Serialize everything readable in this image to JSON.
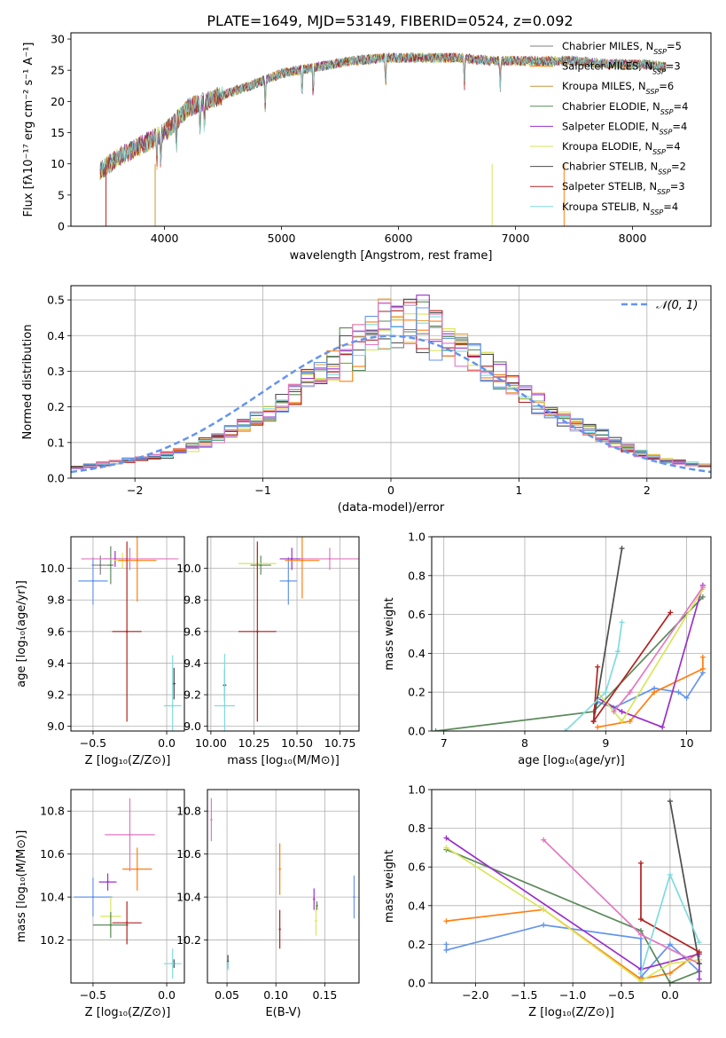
{
  "figure_title": "PLATE=1649, MJD=53149, FIBERID=0524, z=0.092",
  "model_colors": [
    "#7f7f7f",
    "#ff7f0e",
    "#e6a23c",
    "#5b8a5b",
    "#9b30c8",
    "#d9e65a",
    "#4d4d4d",
    "#b22222",
    "#7fdbdf"
  ],
  "chart_data": [
    {
      "id": "spectrum",
      "type": "line",
      "title": "PLATE=1649, MJD=53149, FIBERID=0524, z=0.092",
      "xlabel": "wavelength [Angstrom, rest frame]",
      "ylabel": "Flux [fλ10⁻¹⁷ erg cm⁻² s⁻¹ A⁻¹]",
      "xlim": [
        3200,
        8670
      ],
      "ylim": [
        0,
        31
      ],
      "xticks": [
        "4000",
        "5000",
        "6000",
        "7000",
        "8000"
      ],
      "yticks": [
        "0",
        "5",
        "10",
        "15",
        "20",
        "25",
        "30"
      ],
      "legend_position": "top-right",
      "series": [
        {
          "name": "Chabrier MILES, N_SSP=5",
          "color": "#7f7f7f"
        },
        {
          "name": "Salpeter MILES, N_SSP=3",
          "color": "#ff7f0e"
        },
        {
          "name": "Kroupa MILES, N_SSP=6",
          "color": "#c8963c"
        },
        {
          "name": "Chabrier ELODIE, N_SSP=4",
          "color": "#5b8a5b"
        },
        {
          "name": "Salpeter ELODIE, N_SSP=4",
          "color": "#9b30c8"
        },
        {
          "name": "Kroupa ELODIE, N_SSP=4",
          "color": "#d9e65a"
        },
        {
          "name": "Chabrier STELIB, N_SSP=2",
          "color": "#4d4d4d"
        },
        {
          "name": "Salpeter STELIB, N_SSP=3",
          "color": "#b22222"
        },
        {
          "name": "Kroupa STELIB, N_SSP=4",
          "color": "#7fdbdf"
        }
      ],
      "continuum": {
        "x": [
          3450,
          3600,
          3800,
          4000,
          4200,
          4500,
          4800,
          5000,
          5300,
          5600,
          5900,
          6200,
          6500,
          6800,
          7000,
          7200,
          7500,
          7800,
          8100,
          8300
        ],
        "y": [
          9,
          11,
          13,
          15,
          19,
          21,
          23,
          24.5,
          25.5,
          26.5,
          27,
          27,
          27,
          26.5,
          26.5,
          26.5,
          26.5,
          26,
          26,
          25.5
        ]
      }
    },
    {
      "id": "residuals",
      "type": "histogram",
      "xlabel": "(data-model)/error",
      "ylabel": "Normed distribution",
      "xlim": [
        -2.5,
        2.5
      ],
      "ylim": [
        0,
        0.54
      ],
      "xticks": [
        "−2",
        "−1",
        "0",
        "1",
        "2"
      ],
      "yticks": [
        "0.0",
        "0.1",
        "0.2",
        "0.3",
        "0.4",
        "0.5"
      ],
      "legend": "𝒩(0, 1)",
      "legend_position": "top-right",
      "bin_width": 0.1,
      "bin_start": -2.5,
      "reference_heights": [
        0.03,
        0.035,
        0.04,
        0.045,
        0.05,
        0.055,
        0.06,
        0.065,
        0.075,
        0.085,
        0.1,
        0.11,
        0.13,
        0.145,
        0.165,
        0.185,
        0.21,
        0.235,
        0.27,
        0.29,
        0.32,
        0.34,
        0.37,
        0.39,
        0.41,
        0.43,
        0.43,
        0.42,
        0.4,
        0.38,
        0.365,
        0.34,
        0.31,
        0.29,
        0.265,
        0.24,
        0.21,
        0.19,
        0.17,
        0.15,
        0.135,
        0.12,
        0.1,
        0.085,
        0.07,
        0.06,
        0.05,
        0.045,
        0.04,
        0.035
      ]
    },
    {
      "id": "age-vs-Z",
      "type": "errorbar",
      "xlabel": "Z [log₁₀(Z/Z⊙)]",
      "ylabel": "age  [log₁₀(age/yr)]",
      "xlim": [
        -0.65,
        0.12
      ],
      "ylim": [
        8.97,
        10.2
      ],
      "xticks": [
        "−0.5",
        "0.0"
      ],
      "yticks": [
        "9.0",
        "9.2",
        "9.4",
        "9.6",
        "9.8",
        "10.0"
      ],
      "points": [
        {
          "x": -0.5,
          "y": 9.92,
          "xerr": 0.1,
          "yerr": 0.15,
          "color": "#6495ed"
        },
        {
          "x": -0.45,
          "y": 10.02,
          "xerr": 0.06,
          "yerr": 0.06,
          "color": "#7f7f7f"
        },
        {
          "x": -0.38,
          "y": 10.02,
          "xerr": 0.02,
          "yerr": 0.12,
          "color": "#5b8a5b"
        },
        {
          "x": -0.35,
          "y": 10.06,
          "xerr": 0.08,
          "yerr": 0.05,
          "color": "#9b30c8"
        },
        {
          "x": -0.3,
          "y": 10.05,
          "xerr": 0.06,
          "yerr": 0.05,
          "color": "#d9e65a"
        },
        {
          "x": -0.2,
          "y": 10.05,
          "xerr": 0.13,
          "yerr": 0.26,
          "color": "#ff7f0e"
        },
        {
          "x": -0.25,
          "y": 10.06,
          "xerr": 0.33,
          "yerr": 0.07,
          "color": "#e377c2"
        },
        {
          "x": -0.27,
          "y": 9.6,
          "xerr": 0.1,
          "yerr": 0.57,
          "color": "#b22222"
        },
        {
          "x": 0.05,
          "y": 9.27,
          "xerr": 0.01,
          "yerr": 0.1,
          "color": "#4d4d4d"
        },
        {
          "x": 0.04,
          "y": 9.13,
          "xerr": 0.06,
          "yerr": 0.32,
          "color": "#7fdbdf"
        }
      ]
    },
    {
      "id": "age-vs-mass",
      "type": "errorbar",
      "xlabel": "mass [log₁₀(M/M⊙)]",
      "ylabel": "",
      "xlim": [
        9.98,
        10.86
      ],
      "ylim": [
        8.97,
        10.2
      ],
      "xticks": [
        "10.00",
        "10.25",
        "10.50",
        "10.75"
      ],
      "yticks": [
        "9.0",
        "9.2",
        "9.4",
        "9.6",
        "9.8",
        "10.0"
      ],
      "points": [
        {
          "x": 10.45,
          "y": 9.92,
          "xerr": 0.05,
          "yerr": 0.15,
          "color": "#6495ed"
        },
        {
          "x": 10.29,
          "y": 10.02,
          "xerr": 0.06,
          "yerr": 0.06,
          "color": "#5b8a5b"
        },
        {
          "x": 10.27,
          "y": 10.03,
          "xerr": 0.11,
          "yerr": 0.1,
          "color": "#d9e65a"
        },
        {
          "x": 10.47,
          "y": 10.06,
          "xerr": 0.07,
          "yerr": 0.07,
          "color": "#9b30c8"
        },
        {
          "x": 10.53,
          "y": 10.05,
          "xerr": 0.1,
          "yerr": 0.24,
          "color": "#ff7f0e"
        },
        {
          "x": 10.69,
          "y": 10.06,
          "xerr": 0.17,
          "yerr": 0.07,
          "color": "#e377c2"
        },
        {
          "x": 10.27,
          "y": 9.6,
          "xerr": 0.11,
          "yerr": 0.57,
          "color": "#b22222"
        },
        {
          "x": 10.08,
          "y": 9.26,
          "xerr": 0.01,
          "yerr": 0.1,
          "color": "#4d4d4d"
        },
        {
          "x": 10.08,
          "y": 9.13,
          "xerr": 0.06,
          "yerr": 0.33,
          "color": "#7fdbdf"
        }
      ]
    },
    {
      "id": "weight-vs-age",
      "type": "line",
      "xlabel": "age  [log₁₀(age/yr)]",
      "ylabel": "mass weight",
      "xlim": [
        6.85,
        10.3
      ],
      "ylim": [
        0,
        1
      ],
      "xticks": [
        "7",
        "8",
        "9",
        "10"
      ],
      "yticks": [
        "0.0",
        "0.2",
        "0.4",
        "0.6",
        "0.8",
        "1.0"
      ],
      "series": [
        {
          "color": "#6495ed",
          "x": [
            8.9,
            9.1,
            9.6,
            9.9,
            10.0,
            10.2
          ],
          "y": [
            0.15,
            0.12,
            0.22,
            0.2,
            0.17,
            0.3
          ]
        },
        {
          "color": "#ff7f0e",
          "x": [
            8.9,
            9.3,
            9.6,
            10.2,
            10.2
          ],
          "y": [
            0.02,
            0.05,
            0.2,
            0.32,
            0.38
          ]
        },
        {
          "color": "#5b8a5b",
          "x": [
            6.9,
            8.85,
            10.2
          ],
          "y": [
            0.0,
            0.1,
            0.69
          ]
        },
        {
          "color": "#9b30c8",
          "x": [
            8.9,
            9.2,
            9.7,
            10.2
          ],
          "y": [
            0.17,
            0.1,
            0.02,
            0.75
          ]
        },
        {
          "color": "#d9e65a",
          "x": [
            8.9,
            9.2,
            10.2
          ],
          "y": [
            0.2,
            0.05,
            0.73
          ]
        },
        {
          "color": "#e377c2",
          "x": [
            9.1,
            9.3,
            10.2
          ],
          "y": [
            0.1,
            0.2,
            0.74
          ]
        },
        {
          "color": "#4d4d4d",
          "x": [
            8.85,
            9.2
          ],
          "y": [
            0.05,
            0.94
          ]
        },
        {
          "color": "#b22222",
          "x": [
            8.9,
            8.85,
            9.8
          ],
          "y": [
            0.33,
            0.05,
            0.61
          ]
        },
        {
          "color": "#7fdbdf",
          "x": [
            8.5,
            9.0,
            9.15,
            9.2
          ],
          "y": [
            0.0,
            0.2,
            0.41,
            0.56
          ]
        }
      ]
    },
    {
      "id": "mass-vs-Z",
      "type": "errorbar",
      "xlabel": "Z [log₁₀(Z/Z⊙)]",
      "ylabel": "mass [log₁₀(M/M⊙)]",
      "xlim": [
        -0.65,
        0.12
      ],
      "ylim": [
        10.0,
        10.9
      ],
      "xticks": [
        "−0.5",
        "0.0"
      ],
      "yticks": [
        "10.2",
        "10.4",
        "10.6",
        "10.8"
      ],
      "points": [
        {
          "x": -0.5,
          "y": 10.4,
          "xerr": 0.13,
          "yerr": 0.09,
          "color": "#6495ed"
        },
        {
          "x": -0.4,
          "y": 10.47,
          "xerr": 0.06,
          "yerr": 0.04,
          "color": "#9b30c8"
        },
        {
          "x": -0.38,
          "y": 10.31,
          "xerr": 0.07,
          "yerr": 0.09,
          "color": "#d9e65a"
        },
        {
          "x": -0.38,
          "y": 10.27,
          "xerr": 0.12,
          "yerr": 0.06,
          "color": "#5b8a5b"
        },
        {
          "x": -0.2,
          "y": 10.53,
          "xerr": 0.1,
          "yerr": 0.1,
          "color": "#ff7f0e"
        },
        {
          "x": -0.25,
          "y": 10.69,
          "xerr": 0.17,
          "yerr": 0.17,
          "color": "#e377c2"
        },
        {
          "x": -0.27,
          "y": 10.28,
          "xerr": 0.1,
          "yerr": 0.1,
          "color": "#b22222"
        },
        {
          "x": 0.05,
          "y": 10.09,
          "xerr": 0.01,
          "yerr": 0.02,
          "color": "#4d4d4d"
        },
        {
          "x": 0.04,
          "y": 10.09,
          "xerr": 0.06,
          "yerr": 0.07,
          "color": "#7fdbdf"
        }
      ]
    },
    {
      "id": "mass-vs-EBV",
      "type": "errorbar",
      "xlabel": "E(B-V)",
      "ylabel": "",
      "xlim": [
        0.03,
        0.185
      ],
      "ylim": [
        10.0,
        10.9
      ],
      "xticks": [
        "0.05",
        "0.10",
        "0.15"
      ],
      "yticks": [
        "10.2",
        "10.4",
        "10.6",
        "10.8"
      ],
      "points": [
        {
          "x": 0.034,
          "y": 10.76,
          "xerr": 0,
          "yerr": 0.1,
          "color": "#e377c2"
        },
        {
          "x": 0.051,
          "y": 10.1,
          "xerr": 0,
          "yerr": 0.03,
          "color": "#4d4d4d"
        },
        {
          "x": 0.051,
          "y": 10.08,
          "xerr": 0,
          "yerr": 0.02,
          "color": "#7fdbdf"
        },
        {
          "x": 0.104,
          "y": 10.53,
          "xerr": 0,
          "yerr": 0.12,
          "color": "#ff7f0e"
        },
        {
          "x": 0.104,
          "y": 10.25,
          "xerr": 0,
          "yerr": 0.09,
          "color": "#b22222"
        },
        {
          "x": 0.139,
          "y": 10.39,
          "xerr": 0,
          "yerr": 0.05,
          "color": "#9b30c8"
        },
        {
          "x": 0.141,
          "y": 10.29,
          "xerr": 0,
          "yerr": 0.07,
          "color": "#d9e65a"
        },
        {
          "x": 0.142,
          "y": 10.36,
          "xerr": 0,
          "yerr": 0.02,
          "color": "#5b8a5b"
        },
        {
          "x": 0.18,
          "y": 10.4,
          "xerr": 0,
          "yerr": 0.1,
          "color": "#6495ed"
        }
      ]
    },
    {
      "id": "weight-vs-Z",
      "type": "line",
      "xlabel": "Z [log₁₀(Z/Z⊙)]",
      "ylabel": "mass weight",
      "xlim": [
        -2.45,
        0.42
      ],
      "ylim": [
        0,
        1
      ],
      "xticks": [
        "−2.0",
        "−1.5",
        "−1.0",
        "−0.5",
        "0.0"
      ],
      "yticks": [
        "0.0",
        "0.2",
        "0.4",
        "0.6",
        "0.8",
        "1.0"
      ],
      "series": [
        {
          "color": "#6495ed",
          "x": [
            -2.3,
            -2.3,
            -1.3,
            -0.3,
            -0.3,
            0.0,
            0.3
          ],
          "y": [
            0.2,
            0.17,
            0.3,
            0.23,
            0.03,
            0.2,
            0.06
          ]
        },
        {
          "color": "#ff7f0e",
          "x": [
            -2.3,
            -1.3,
            -0.3,
            0.0,
            0.3
          ],
          "y": [
            0.32,
            0.38,
            0.02,
            0.05,
            0.16
          ]
        },
        {
          "color": "#5b8a5b",
          "x": [
            -2.3,
            -0.3,
            0.0,
            0.3,
            0.3
          ],
          "y": [
            0.69,
            0.27,
            0.0,
            0.06,
            0.12
          ]
        },
        {
          "color": "#9b30c8",
          "x": [
            -2.3,
            -0.3,
            0.3,
            0.3
          ],
          "y": [
            0.75,
            0.07,
            0.15,
            0.02
          ]
        },
        {
          "color": "#d9e65a",
          "x": [
            -2.3,
            -1.3,
            -0.3,
            0.0,
            0.3
          ],
          "y": [
            0.7,
            0.38,
            0.01,
            0.1,
            0.12
          ]
        },
        {
          "color": "#e377c2",
          "x": [
            -1.3,
            -0.3,
            0.3
          ],
          "y": [
            0.74,
            0.25,
            0.1
          ]
        },
        {
          "color": "#4d4d4d",
          "x": [
            0.0,
            0.3
          ],
          "y": [
            0.94,
            0.1
          ]
        },
        {
          "color": "#b22222",
          "x": [
            -0.3,
            -0.3,
            0.3
          ],
          "y": [
            0.62,
            0.33,
            0.16
          ]
        },
        {
          "color": "#7fdbdf",
          "x": [
            -0.3,
            0.0,
            0.3
          ],
          "y": [
            0.05,
            0.56,
            0.21
          ]
        }
      ]
    }
  ]
}
